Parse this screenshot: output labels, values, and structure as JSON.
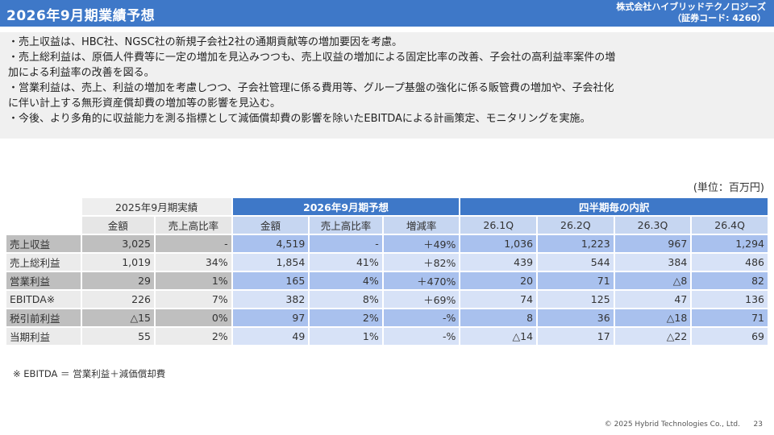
{
  "header": {
    "title": "2026年9月期業績予想",
    "company_line1": "株式会社ハイブリッドテクノロジーズ",
    "company_line2": "（証券コード: 4260）"
  },
  "notes": [
    "・売上収益は、HBC社、NGSC社の新規子会社2社の通期貢献等の増加要因を考慮。",
    "・売上総利益は、原価人件費等に一定の増加を見込みつつも、売上収益の増加による固定比率の改善、子会社の高利益率案件の増",
    "加による利益率の改善を図る。",
    "・営業利益は、売上、利益の増加を考慮しつつ、子会社管理に係る費用等、グループ基盤の強化に係る販管費の増加や、子会社化",
    "に伴い計上する無形資産償却費の増加等の影響を見込む。",
    "・今後、より多角的に収益能力を測る指標として減価償却費の影響を除いたEBITDAによる計画策定、モニタリングを実施。"
  ],
  "unit_label": "(単位：百万円)",
  "table": {
    "group_headers": {
      "prev": "2025年9月期実績",
      "forecast": "2026年9月期予想",
      "quarterly": "四半期毎の内訳"
    },
    "sub_headers": {
      "prev": [
        "金額",
        "売上高比率"
      ],
      "forecast": [
        "金額",
        "売上高比率",
        "増減率"
      ],
      "quarterly": [
        "26.1Q",
        "26.2Q",
        "26.3Q",
        "26.4Q"
      ]
    },
    "rows": [
      {
        "label": "売上収益",
        "prev": [
          "3,025",
          "-"
        ],
        "forecast": [
          "4,519",
          "-",
          "＋49%"
        ],
        "quarterly": [
          "1,036",
          "1,223",
          "967",
          "1,294"
        ]
      },
      {
        "label": "売上総利益",
        "prev": [
          "1,019",
          "34%"
        ],
        "forecast": [
          "1,854",
          "41%",
          "＋82%"
        ],
        "quarterly": [
          "439",
          "544",
          "384",
          "486"
        ]
      },
      {
        "label": "営業利益",
        "prev": [
          "29",
          "1%"
        ],
        "forecast": [
          "165",
          "4%",
          "＋470%"
        ],
        "quarterly": [
          "20",
          "71",
          "△8",
          "82"
        ]
      },
      {
        "label": "EBITDA※",
        "prev": [
          "226",
          "7%"
        ],
        "forecast": [
          "382",
          "8%",
          "＋69%"
        ],
        "quarterly": [
          "74",
          "125",
          "47",
          "136"
        ]
      },
      {
        "label": "税引前利益",
        "prev": [
          "△15",
          "0%"
        ],
        "forecast": [
          "97",
          "2%",
          "-%"
        ],
        "quarterly": [
          "8",
          "36",
          "△18",
          "71"
        ]
      },
      {
        "label": "当期利益",
        "prev": [
          "55",
          "2%"
        ],
        "forecast": [
          "49",
          "1%",
          "-%"
        ],
        "quarterly": [
          "△14",
          "17",
          "△22",
          "69"
        ]
      }
    ]
  },
  "footnote": "※ EBITDA ＝ 営業利益＋減価償却費",
  "copyright": "© 2025 Hybrid Technologies Co., Ltd.",
  "page_number": "23"
}
